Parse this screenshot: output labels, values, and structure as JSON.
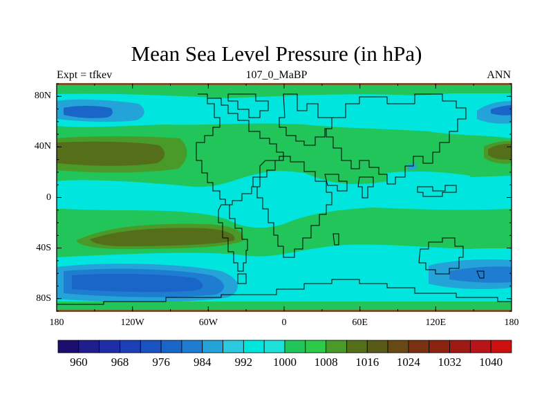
{
  "title": "Mean Sea Level Pressure (in hPa)",
  "left_string": "Expt = tfkev",
  "center_string": "107_0_MaBP",
  "right_string": "ANN",
  "y_axis": {
    "ticks": [
      {
        "label": "80N",
        "lat": 80
      },
      {
        "label": "40N",
        "lat": 40
      },
      {
        "label": "0",
        "lat": 0
      },
      {
        "label": "40S",
        "lat": -40
      },
      {
        "label": "80S",
        "lat": -80
      }
    ],
    "range": [
      -90,
      90
    ]
  },
  "x_axis": {
    "ticks": [
      {
        "label": "180",
        "lon": -180
      },
      {
        "label": "120W",
        "lon": -120
      },
      {
        "label": "60W",
        "lon": -60
      },
      {
        "label": "0",
        "lon": 0
      },
      {
        "label": "60E",
        "lon": 60
      },
      {
        "label": "120E",
        "lon": 120
      },
      {
        "label": "180",
        "lon": 180
      }
    ],
    "range": [
      -180,
      180
    ]
  },
  "colorbar": {
    "levels": [
      956,
      960,
      964,
      968,
      972,
      976,
      980,
      984,
      988,
      992,
      996,
      1000,
      1004,
      1008,
      1012,
      1016,
      1020,
      1024,
      1028,
      1032,
      1036,
      1040,
      1044
    ],
    "colors": [
      "#1a0f6e",
      "#1f1e8c",
      "#1f2ea8",
      "#1c3fb8",
      "#1a52c2",
      "#1a66c8",
      "#1e7dd0",
      "#24a3d8",
      "#2ac9e0",
      "#00e5dd",
      "#1de0d8",
      "#22c55a",
      "#2cc94a",
      "#4a9a2a",
      "#556e1a",
      "#5a5a18",
      "#6a4a14",
      "#7a3212",
      "#8a2410",
      "#a01a14",
      "#b8141a",
      "#cc1010"
    ],
    "labels": [
      "960",
      "968",
      "976",
      "984",
      "992",
      "1000",
      "1008",
      "1016",
      "1024",
      "1032",
      "1040"
    ]
  },
  "colors": {
    "land_outline": "#000000",
    "green_1008": "#22c55a",
    "cyan_1000": "#00e5dd",
    "brown_1016": "#556e1a",
    "olive_1012": "#4a9a2a",
    "blue_984": "#24a3d8",
    "blue_976": "#1a66c8"
  }
}
